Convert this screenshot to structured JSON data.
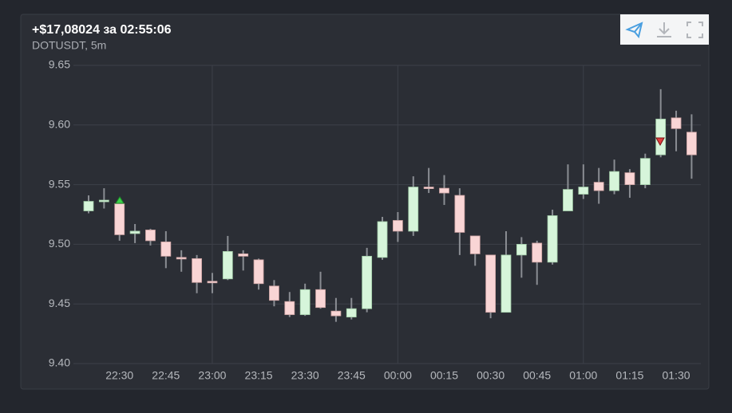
{
  "chart_data": {
    "type": "candlestick",
    "title": "+$17,08024 за 02:55:06",
    "subtitle": "DOTUSDT, 5m",
    "categories": [
      null,
      null,
      "22:30",
      null,
      null,
      "22:45",
      null,
      null,
      "23:00",
      null,
      null,
      "23:15",
      null,
      null,
      "23:30",
      null,
      null,
      "23:45",
      null,
      null,
      "00:00",
      null,
      null,
      "00:15",
      null,
      null,
      "00:30",
      null,
      null,
      "00:45",
      null,
      null,
      "01:00",
      null,
      null,
      "01:15",
      null,
      null,
      "01:30",
      null
    ],
    "open": [
      9.528,
      9.536,
      9.534,
      9.509,
      9.512,
      9.502,
      9.489,
      9.488,
      9.469,
      9.471,
      9.492,
      9.487,
      9.465,
      9.452,
      9.441,
      9.462,
      9.444,
      9.439,
      9.446,
      9.489,
      9.52,
      9.511,
      9.548,
      9.547,
      9.541,
      9.507,
      9.491,
      9.443,
      9.491,
      9.501,
      9.485,
      9.528,
      9.542,
      9.552,
      9.545,
      9.56,
      9.55,
      9.575,
      9.606,
      9.594
    ],
    "high": [
      9.541,
      9.547,
      9.536,
      9.517,
      9.513,
      9.511,
      9.495,
      9.491,
      9.476,
      9.507,
      9.495,
      9.488,
      9.47,
      9.46,
      9.467,
      9.477,
      9.455,
      9.455,
      9.497,
      9.523,
      9.527,
      9.557,
      9.564,
      9.558,
      9.547,
      9.507,
      9.491,
      9.511,
      9.506,
      9.503,
      9.529,
      9.567,
      9.567,
      9.564,
      9.571,
      9.563,
      9.576,
      9.63,
      9.612,
      9.609
    ],
    "low": [
      9.526,
      9.53,
      9.503,
      9.501,
      9.499,
      9.48,
      9.477,
      9.459,
      9.459,
      9.47,
      9.478,
      9.462,
      9.448,
      9.439,
      9.44,
      9.446,
      9.435,
      9.437,
      9.443,
      9.487,
      9.502,
      9.507,
      9.543,
      9.533,
      9.491,
      9.482,
      9.438,
      9.443,
      9.472,
      9.466,
      9.483,
      9.528,
      9.538,
      9.534,
      9.542,
      9.539,
      9.547,
      9.573,
      9.578,
      9.555
    ],
    "close": [
      9.536,
      9.537,
      9.508,
      9.511,
      9.503,
      9.49,
      9.488,
      9.468,
      9.468,
      9.494,
      9.49,
      9.467,
      9.453,
      9.441,
      9.462,
      9.447,
      9.44,
      9.446,
      9.49,
      9.519,
      9.511,
      9.548,
      9.547,
      9.543,
      9.51,
      9.492,
      9.443,
      9.491,
      9.5,
      9.485,
      9.524,
      9.546,
      9.548,
      9.545,
      9.561,
      9.55,
      9.572,
      9.605,
      9.597,
      9.575
    ],
    "up_color": "#d6f5da",
    "down_color": "#f9d5d5",
    "wick_color": "#8a8d93",
    "ylim": [
      9.4,
      9.65
    ],
    "yticks": [
      {
        "value": 9.4,
        "label": "9.40"
      },
      {
        "value": 9.45,
        "label": "9.45"
      },
      {
        "value": 9.5,
        "label": "9.50"
      },
      {
        "value": 9.55,
        "label": "9.55"
      },
      {
        "value": 9.6,
        "label": "9.60"
      },
      {
        "value": 9.65,
        "label": "9.65"
      }
    ],
    "grid": true
  }
}
